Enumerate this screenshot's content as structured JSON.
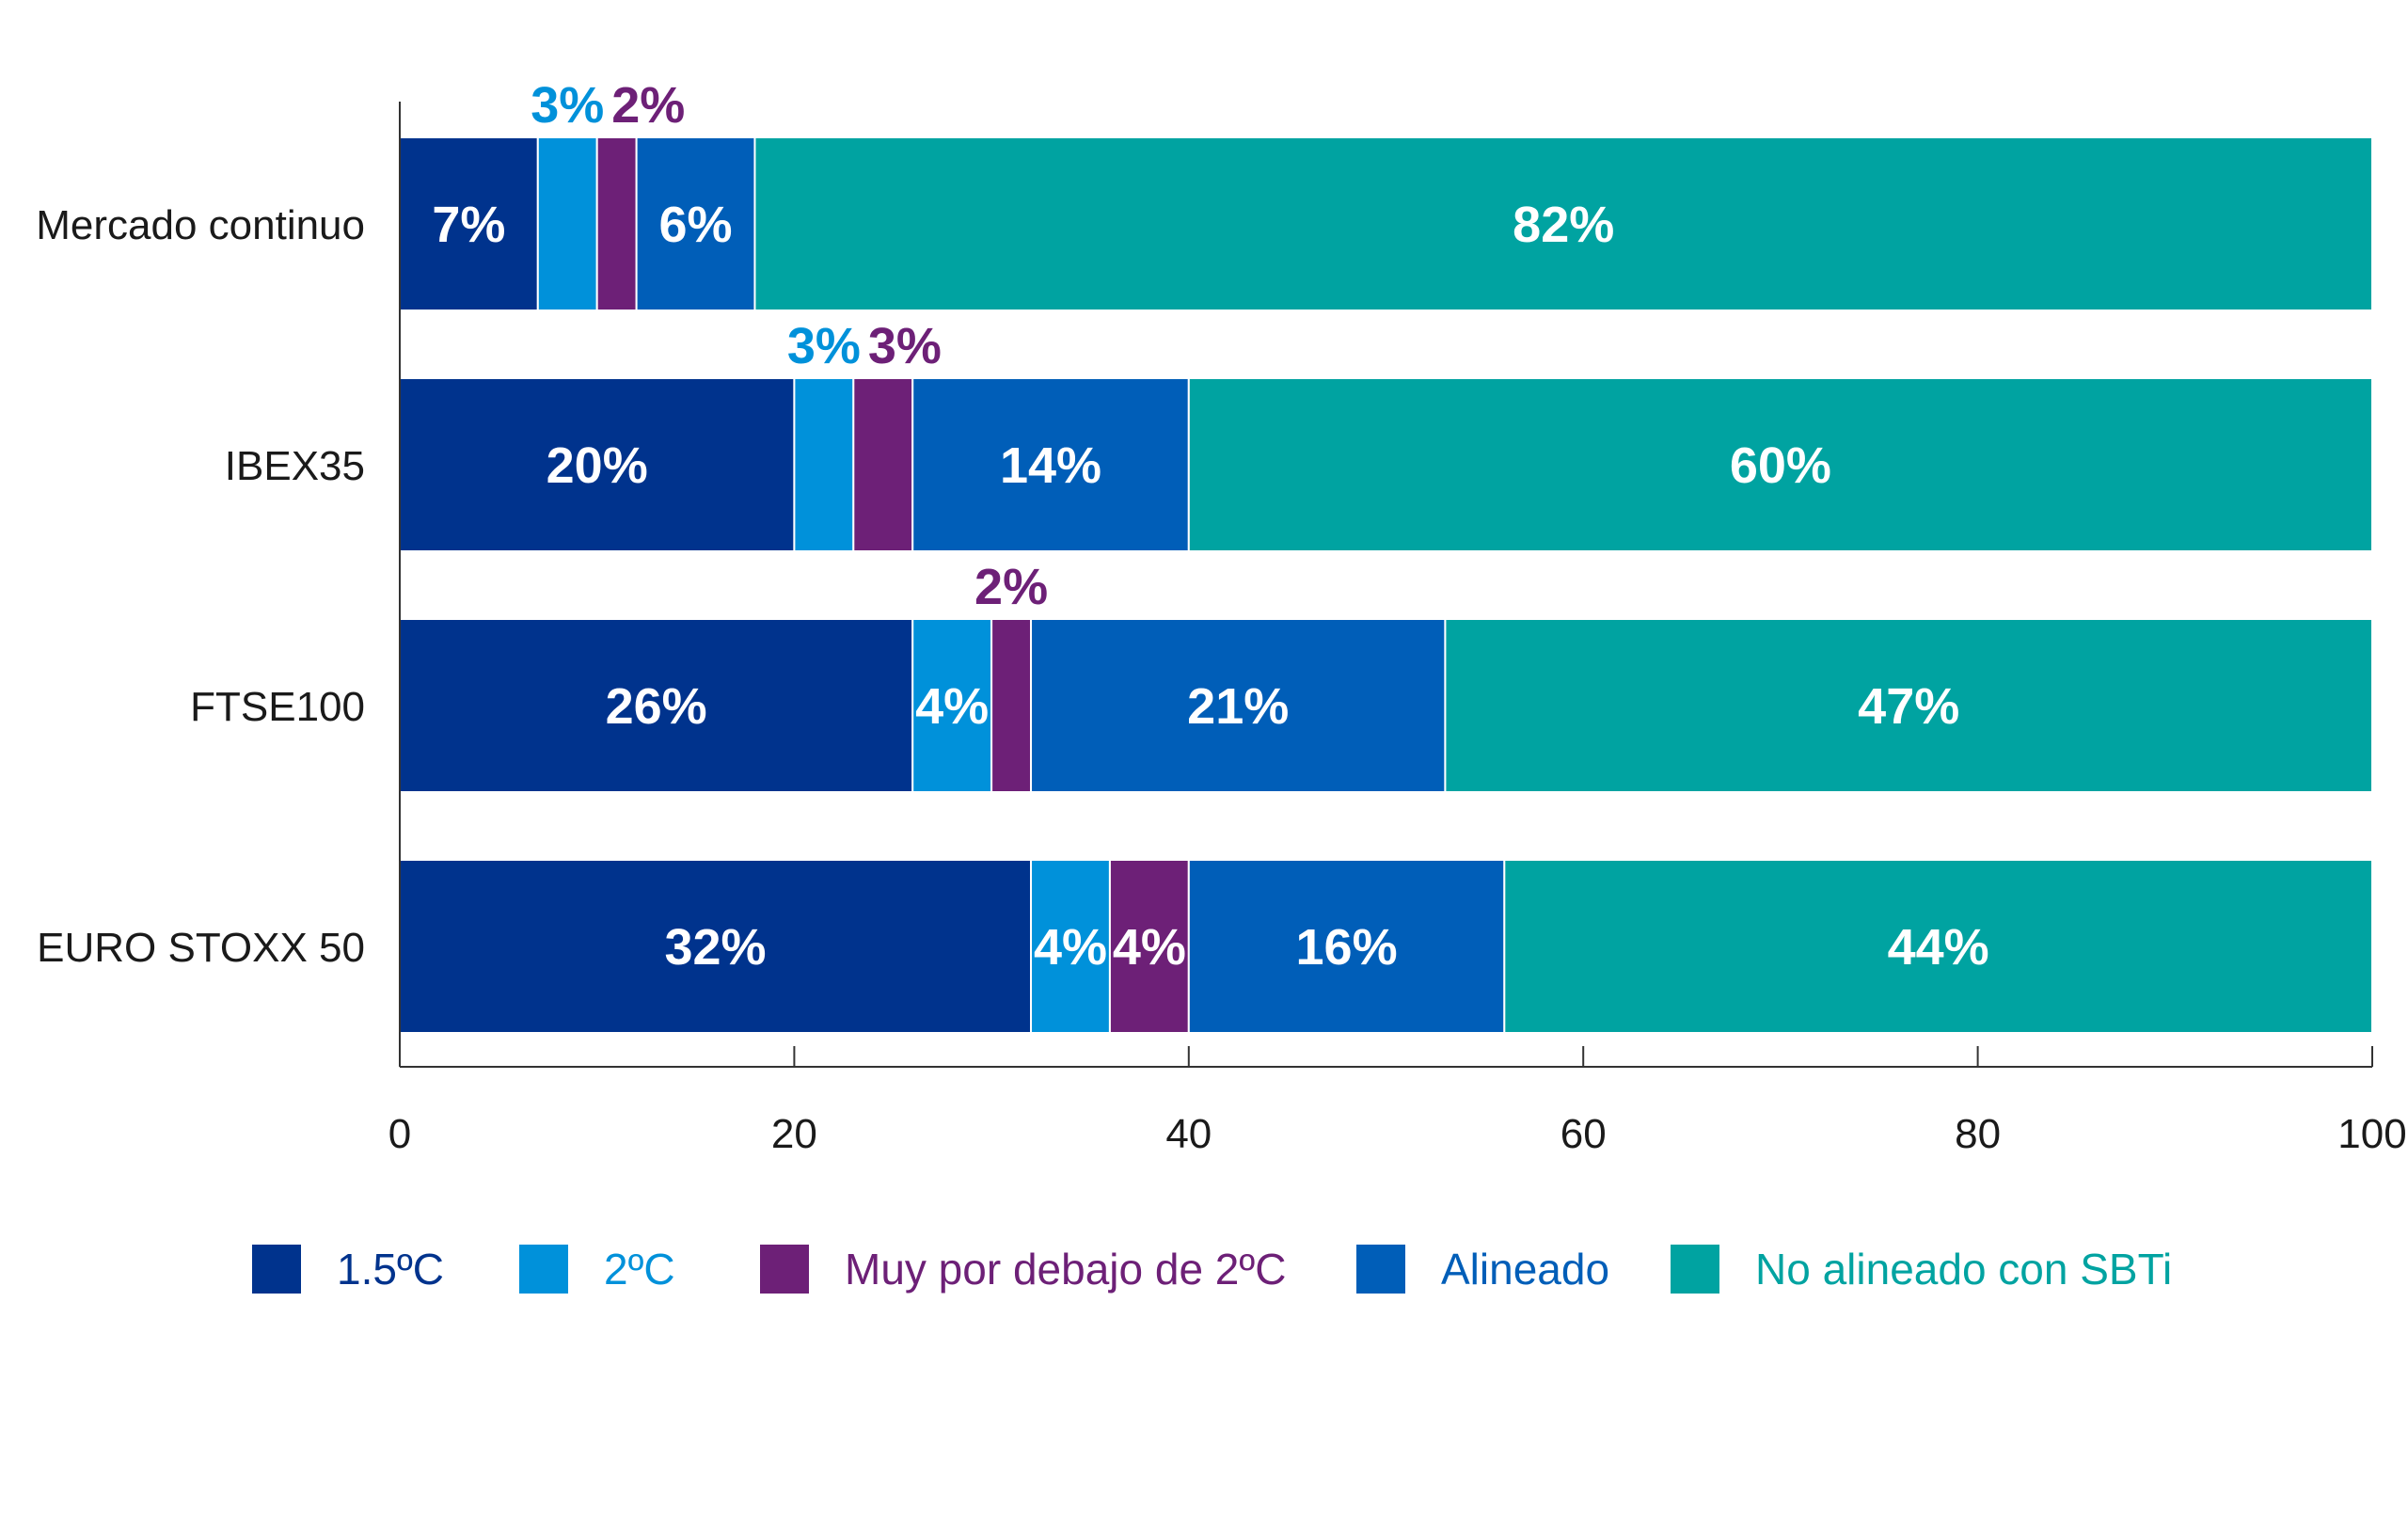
{
  "chart_data": {
    "type": "bar",
    "orientation": "horizontal",
    "stacked": true,
    "categories": [
      "Mercado continuo",
      "IBEX35",
      "FTSE100",
      "EURO STOXX 50"
    ],
    "series": [
      {
        "name": "1.5ºC",
        "color": "#00338d",
        "values": [
          7,
          20,
          26,
          32
        ]
      },
      {
        "name": "2ºC",
        "color": "#0091da",
        "values": [
          3,
          3,
          4,
          4
        ]
      },
      {
        "name": "Muy por debajo de 2ºC",
        "color": "#6d2077",
        "values": [
          2,
          3,
          2,
          4
        ]
      },
      {
        "name": "Alineado",
        "color": "#005eb8",
        "values": [
          6,
          14,
          21,
          16
        ]
      },
      {
        "name": "No alineado con SBTi",
        "color": "#00a3a1",
        "values": [
          82,
          60,
          47,
          44
        ]
      }
    ],
    "data_labels": [
      [
        "7%",
        "3%",
        "2%",
        "6%",
        "82%"
      ],
      [
        "20%",
        "3%",
        "3%",
        "14%",
        "60%"
      ],
      [
        "26%",
        "4%",
        "2%",
        "21%",
        "47%"
      ],
      [
        "32%",
        "4%",
        "4%",
        "16%",
        "44%"
      ]
    ],
    "x_ticks": [
      "0",
      "20",
      "40",
      "60",
      "80",
      "100"
    ],
    "xlim": [
      0,
      100
    ],
    "title": "",
    "xlabel": "",
    "ylabel": "",
    "grid": false,
    "legend_position": "bottom"
  }
}
